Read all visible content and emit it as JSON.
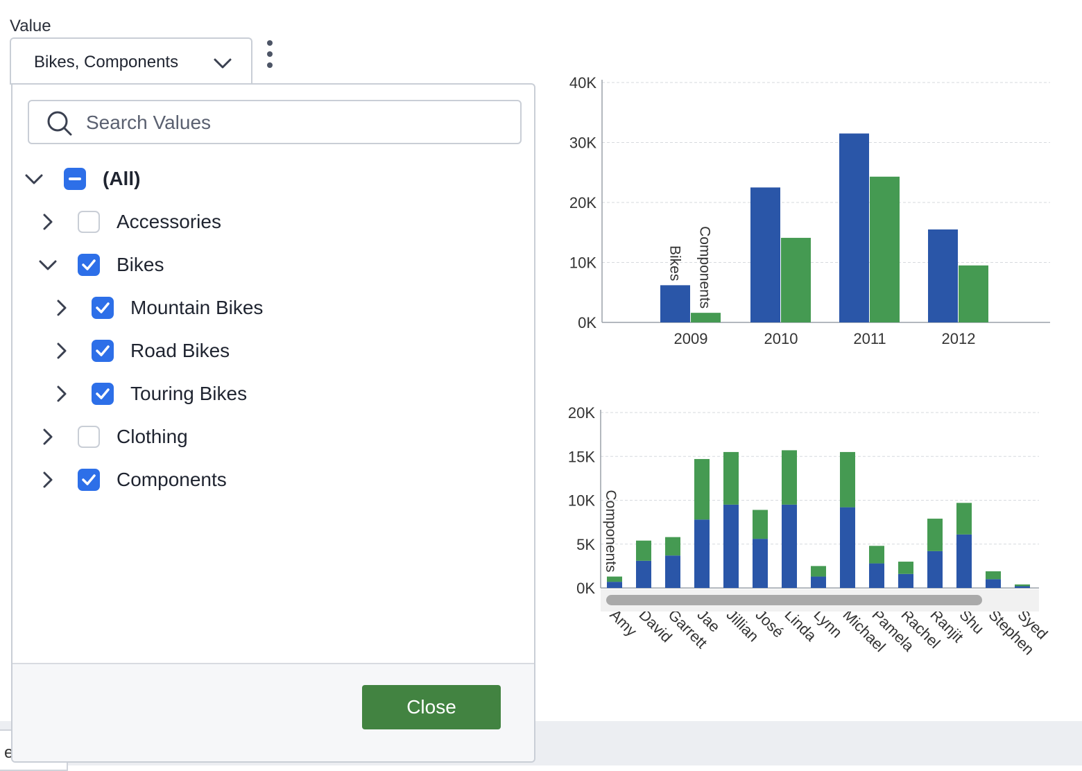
{
  "filter": {
    "label": "Value",
    "selected_value": "Bikes, Components",
    "search_placeholder": "Search Values",
    "close_label": "Close",
    "tree": [
      {
        "label": "(All)",
        "state": "partial",
        "expanded": true,
        "level": 0
      },
      {
        "label": "Accessories",
        "state": "unchecked",
        "expanded": false,
        "level": 1
      },
      {
        "label": "Bikes",
        "state": "checked",
        "expanded": true,
        "level": 1
      },
      {
        "label": "Mountain Bikes",
        "state": "checked",
        "expanded": false,
        "level": 2
      },
      {
        "label": "Road Bikes",
        "state": "checked",
        "expanded": false,
        "level": 2
      },
      {
        "label": "Touring Bikes",
        "state": "checked",
        "expanded": false,
        "level": 2
      },
      {
        "label": "Clothing",
        "state": "unchecked",
        "expanded": false,
        "level": 1
      },
      {
        "label": "Components",
        "state": "checked",
        "expanded": false,
        "level": 1
      }
    ]
  },
  "bottom_tab": {
    "text": "e"
  },
  "colors": {
    "bikes": "#2a56a8",
    "components": "#459a52",
    "accent": "#2d6fe8",
    "close_button": "#428341"
  },
  "chart_data": [
    {
      "type": "bar",
      "categories": [
        "2009",
        "2010",
        "2011",
        "2012"
      ],
      "series": [
        {
          "name": "Bikes",
          "values": [
            6200,
            22500,
            31500,
            15500
          ]
        },
        {
          "name": "Components",
          "values": [
            1600,
            14100,
            24300,
            9500
          ]
        }
      ],
      "yticks": [
        "0K",
        "10K",
        "20K",
        "30K",
        "40K"
      ],
      "ylim": [
        0,
        40000
      ],
      "grid": true
    },
    {
      "type": "bar",
      "stacked": true,
      "categories": [
        "Amy",
        "David",
        "Garrett",
        "Jae",
        "Jillian",
        "José",
        "Linda",
        "Lynn",
        "Michael",
        "Pamela",
        "Rachel",
        "Ranjit",
        "Shu",
        "Stephen",
        "Syed"
      ],
      "series": [
        {
          "name": "Bikes",
          "values": [
            700,
            3100,
            3700,
            7800,
            9500,
            5600,
            9500,
            1300,
            9200,
            2800,
            1600,
            4200,
            6100,
            1000,
            200
          ]
        },
        {
          "name": "Components",
          "values": [
            600,
            2300,
            2100,
            6900,
            6000,
            3300,
            6200,
            1200,
            6300,
            2000,
            1400,
            3700,
            3600,
            900,
            200
          ]
        }
      ],
      "series_label": "Components",
      "yticks": [
        "0K",
        "5K",
        "10K",
        "15K",
        "20K"
      ],
      "ylim": [
        0,
        20000
      ],
      "grid": true,
      "scrollbar": true
    }
  ]
}
